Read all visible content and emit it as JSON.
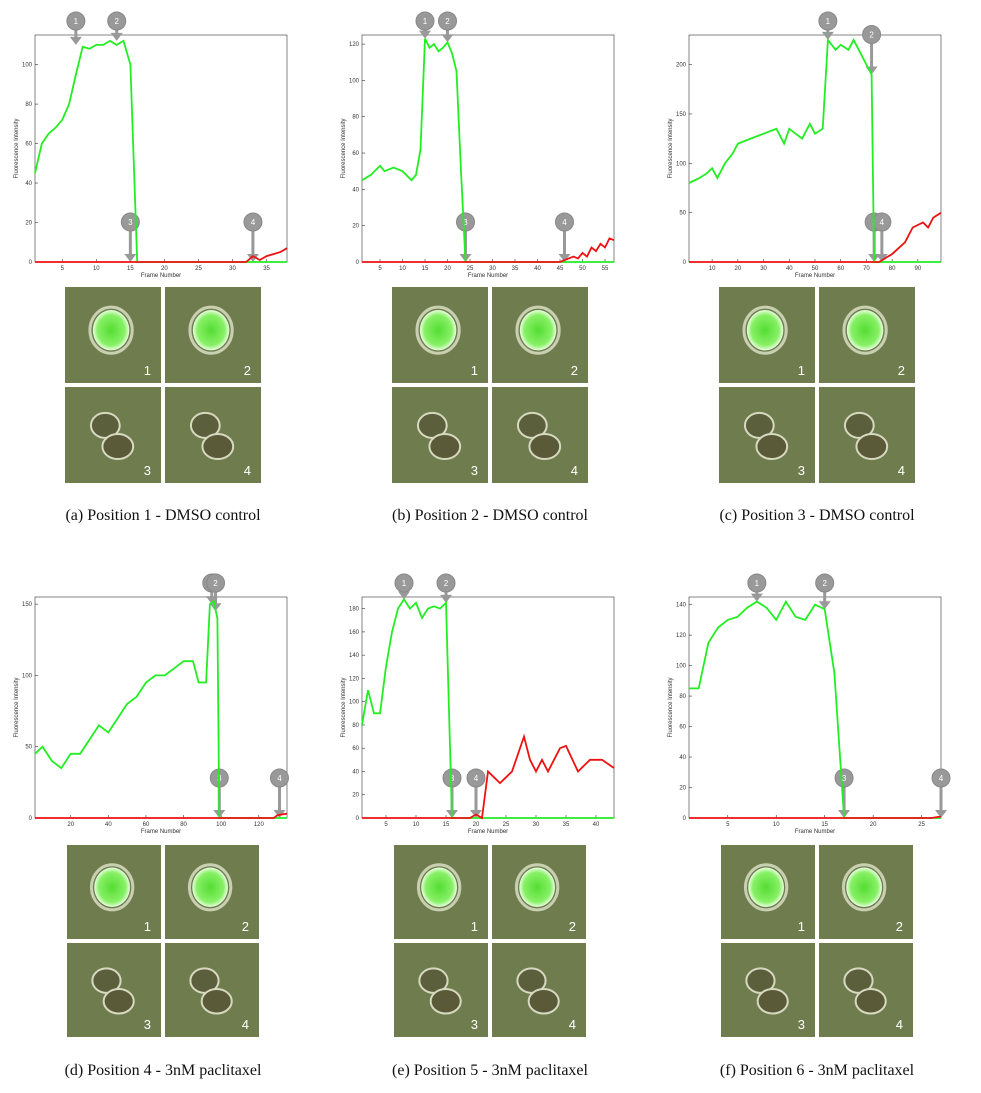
{
  "chart_data": [
    {
      "type": "line",
      "caption": "(a) Position 1 - DMSO control",
      "xlabel": "Frame Number",
      "ylabel": "Fluorescence Intensity",
      "x": [
        1,
        2,
        3,
        4,
        5,
        6,
        7,
        8,
        9,
        10,
        11,
        12,
        13,
        14,
        15,
        16,
        32,
        33,
        34,
        35,
        36,
        37,
        38
      ],
      "series": [
        {
          "name": "green",
          "color": "#22ee22",
          "values": [
            45,
            60,
            65,
            68,
            72,
            80,
            95,
            109,
            108,
            110,
            110,
            112,
            110,
            112,
            100,
            0,
            0,
            0,
            0,
            0,
            0,
            0,
            0
          ]
        },
        {
          "name": "red",
          "color": "#ee1111",
          "values": [
            0,
            0,
            0,
            0,
            0,
            0,
            0,
            0,
            0,
            0,
            0,
            0,
            0,
            0,
            0,
            0,
            0,
            3,
            1,
            3,
            4,
            5,
            7
          ]
        }
      ],
      "xlim": [
        1,
        38
      ],
      "xticks": [
        5,
        10,
        15,
        20,
        25,
        30,
        35
      ],
      "ylim": [
        0,
        115
      ],
      "yticks": [
        0,
        20,
        40,
        60,
        80,
        100
      ],
      "annotations": [
        {
          "label": "1",
          "x": 7,
          "y": 110
        },
        {
          "label": "2",
          "x": 13,
          "y": 112
        },
        {
          "label": "3",
          "x": 15,
          "y": 0
        },
        {
          "label": "4",
          "x": 33,
          "y": 0
        }
      ],
      "image_labels": [
        "1",
        "2",
        "3",
        "4"
      ]
    },
    {
      "type": "line",
      "caption": "(b) Position 2 - DMSO control",
      "xlabel": "Frame Number",
      "ylabel": "Fluorescence Intensity",
      "x": [
        1,
        3,
        5,
        6,
        8,
        10,
        12,
        13,
        14,
        15,
        16,
        17,
        18,
        19,
        20,
        21,
        22,
        23,
        24,
        45,
        46,
        48,
        49,
        50,
        51,
        52,
        53,
        54,
        55,
        56,
        57
      ],
      "series": [
        {
          "name": "green",
          "color": "#22ee22",
          "values": [
            45,
            48,
            53,
            50,
            52,
            50,
            45,
            48,
            62,
            123,
            118,
            120,
            116,
            118,
            121,
            115,
            105,
            50,
            0,
            0,
            0,
            0,
            0,
            0,
            0,
            0,
            0,
            0,
            0,
            0,
            0
          ]
        },
        {
          "name": "red",
          "color": "#ee1111",
          "values": [
            0,
            0,
            0,
            0,
            0,
            0,
            0,
            0,
            0,
            0,
            0,
            0,
            0,
            0,
            0,
            0,
            0,
            0,
            0,
            0,
            1,
            3,
            2,
            5,
            3,
            8,
            6,
            10,
            8,
            13,
            12
          ]
        }
      ],
      "xlim": [
        1,
        57
      ],
      "xticks": [
        5,
        10,
        15,
        20,
        25,
        30,
        35,
        40,
        45,
        50,
        55
      ],
      "ylim": [
        0,
        125
      ],
      "yticks": [
        0,
        20,
        40,
        60,
        80,
        100,
        120
      ],
      "annotations": [
        {
          "label": "1",
          "x": 15,
          "y": 123
        },
        {
          "label": "2",
          "x": 20,
          "y": 121
        },
        {
          "label": "3",
          "x": 24,
          "y": 0
        },
        {
          "label": "4",
          "x": 46,
          "y": 0
        }
      ],
      "image_labels": [
        "1",
        "2",
        "3",
        "4"
      ]
    },
    {
      "type": "line",
      "caption": "(c) Position 3 - DMSO control",
      "xlabel": "Frame Number",
      "ylabel": "Fluorescence Intensity",
      "x": [
        1,
        5,
        8,
        10,
        12,
        15,
        18,
        20,
        25,
        30,
        35,
        38,
        40,
        45,
        48,
        50,
        53,
        55,
        58,
        60,
        63,
        65,
        68,
        70,
        72,
        73,
        75,
        78,
        80,
        85,
        88,
        92,
        94,
        96,
        99
      ],
      "series": [
        {
          "name": "green",
          "color": "#22ee22",
          "values": [
            80,
            85,
            90,
            95,
            85,
            100,
            110,
            120,
            125,
            130,
            135,
            120,
            135,
            125,
            140,
            130,
            135,
            225,
            215,
            220,
            215,
            225,
            210,
            200,
            190,
            0,
            0,
            0,
            0,
            0,
            0,
            0,
            0,
            0,
            0
          ]
        },
        {
          "name": "red",
          "color": "#ee1111",
          "values": [
            0,
            0,
            0,
            0,
            0,
            0,
            0,
            0,
            0,
            0,
            0,
            0,
            0,
            0,
            0,
            0,
            0,
            0,
            0,
            0,
            0,
            0,
            0,
            0,
            0,
            0,
            0,
            5,
            8,
            20,
            35,
            40,
            35,
            45,
            50
          ]
        }
      ],
      "xlim": [
        1,
        99
      ],
      "xticks": [
        10,
        20,
        30,
        40,
        50,
        60,
        70,
        80,
        90
      ],
      "ylim": [
        0,
        230
      ],
      "yticks": [
        0,
        50,
        100,
        150,
        200
      ],
      "annotations": [
        {
          "label": "1",
          "x": 55,
          "y": 225
        },
        {
          "label": "2",
          "x": 72,
          "y": 190
        },
        {
          "label": "3",
          "x": 73,
          "y": 0
        },
        {
          "label": "4",
          "x": 76,
          "y": 0
        }
      ],
      "image_labels": [
        "1",
        "2",
        "3",
        "4"
      ]
    },
    {
      "type": "line",
      "caption": "(d) Position 4 - 3nM paclitaxel",
      "xlabel": "Frame Number",
      "ylabel": "Fluorescence Intensity",
      "x": [
        1,
        5,
        10,
        15,
        20,
        25,
        30,
        35,
        40,
        45,
        50,
        55,
        60,
        65,
        70,
        75,
        80,
        85,
        88,
        92,
        94,
        96,
        98,
        99,
        128,
        130,
        135
      ],
      "series": [
        {
          "name": "green",
          "color": "#22ee22",
          "values": [
            45,
            50,
            40,
            35,
            45,
            45,
            55,
            65,
            60,
            70,
            80,
            85,
            95,
            100,
            100,
            105,
            110,
            110,
            95,
            95,
            150,
            152,
            140,
            0,
            0,
            0,
            0
          ]
        },
        {
          "name": "red",
          "color": "#ee1111",
          "values": [
            0,
            0,
            0,
            0,
            0,
            0,
            0,
            0,
            0,
            0,
            0,
            0,
            0,
            0,
            0,
            0,
            0,
            0,
            0,
            0,
            0,
            0,
            0,
            0,
            0,
            2,
            3
          ]
        }
      ],
      "xlim": [
        1,
        135
      ],
      "xticks": [
        20,
        40,
        60,
        80,
        100,
        120
      ],
      "ylim": [
        0,
        155
      ],
      "yticks": [
        0,
        50,
        100,
        150
      ],
      "annotations": [
        {
          "label": "1",
          "x": 95,
          "y": 150
        },
        {
          "label": "2",
          "x": 97,
          "y": 145
        },
        {
          "label": "3",
          "x": 99,
          "y": 0
        },
        {
          "label": "4",
          "x": 131,
          "y": 0
        }
      ],
      "image_labels": [
        "1",
        "2",
        "3",
        "4"
      ]
    },
    {
      "type": "line",
      "caption": "(e) Position 5 - 3nM paclitaxel",
      "xlabel": "Frame Number",
      "ylabel": "Fluorescence Intensity",
      "x": [
        1,
        2,
        3,
        4,
        5,
        6,
        7,
        8,
        9,
        10,
        11,
        12,
        13,
        14,
        15,
        16,
        19,
        20,
        21,
        22,
        23,
        24,
        25,
        26,
        27,
        28,
        29,
        30,
        31,
        32,
        34,
        35,
        37,
        39,
        41,
        43
      ],
      "series": [
        {
          "name": "green",
          "color": "#22ee22",
          "values": [
            80,
            110,
            90,
            90,
            130,
            160,
            180,
            188,
            180,
            185,
            172,
            180,
            182,
            180,
            185,
            0,
            0,
            0,
            0,
            0,
            0,
            0,
            0,
            0,
            0,
            0,
            0,
            0,
            0,
            0,
            0,
            0,
            0,
            0,
            0,
            0
          ]
        },
        {
          "name": "red",
          "color": "#ee1111",
          "values": [
            0,
            0,
            0,
            0,
            0,
            0,
            0,
            0,
            0,
            0,
            0,
            0,
            0,
            0,
            0,
            0,
            0,
            3,
            0,
            40,
            35,
            30,
            35,
            40,
            55,
            70,
            50,
            40,
            50,
            40,
            60,
            62,
            40,
            50,
            50,
            43
          ]
        }
      ],
      "xlim": [
        1,
        43
      ],
      "xticks": [
        5,
        10,
        15,
        20,
        25,
        30,
        35,
        40
      ],
      "ylim": [
        0,
        190
      ],
      "yticks": [
        0,
        20,
        40,
        60,
        80,
        100,
        120,
        140,
        160,
        180
      ],
      "annotations": [
        {
          "label": "1",
          "x": 8,
          "y": 188
        },
        {
          "label": "2",
          "x": 15,
          "y": 185
        },
        {
          "label": "3",
          "x": 16,
          "y": 0
        },
        {
          "label": "4",
          "x": 20,
          "y": 0
        }
      ],
      "image_labels": [
        "1",
        "2",
        "3",
        "4"
      ]
    },
    {
      "type": "line",
      "caption": "(f) Position 6 - 3nM paclitaxel",
      "xlabel": "Frame Number",
      "ylabel": "Fluorescence Intensity",
      "x": [
        1,
        2,
        3,
        4,
        5,
        6,
        7,
        8,
        9,
        10,
        11,
        12,
        13,
        14,
        15,
        16,
        17,
        26,
        27
      ],
      "series": [
        {
          "name": "green",
          "color": "#22ee22",
          "values": [
            85,
            85,
            115,
            125,
            130,
            132,
            138,
            142,
            138,
            130,
            142,
            132,
            130,
            140,
            137,
            95,
            0,
            0,
            0
          ]
        },
        {
          "name": "red",
          "color": "#ee1111",
          "values": [
            0,
            0,
            0,
            0,
            0,
            0,
            0,
            0,
            0,
            0,
            0,
            0,
            0,
            0,
            0,
            0,
            0,
            0,
            1
          ]
        }
      ],
      "xlim": [
        1,
        27
      ],
      "xticks": [
        5,
        10,
        15,
        20,
        25
      ],
      "ylim": [
        0,
        145
      ],
      "yticks": [
        0,
        20,
        40,
        60,
        80,
        100,
        120,
        140
      ],
      "annotations": [
        {
          "label": "1",
          "x": 8,
          "y": 142
        },
        {
          "label": "2",
          "x": 15,
          "y": 137
        },
        {
          "label": "3",
          "x": 17,
          "y": 0
        },
        {
          "label": "4",
          "x": 27,
          "y": 0
        }
      ],
      "image_labels": [
        "1",
        "2",
        "3",
        "4"
      ]
    }
  ]
}
